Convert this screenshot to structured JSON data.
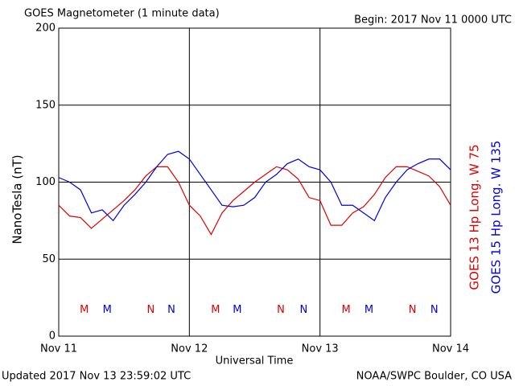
{
  "chart_data": {
    "type": "line",
    "title": "GOES Magnetometer (1 minute data)",
    "subtitle": "Begin:  2017 Nov 11 0000 UTC",
    "y_label": "NanoTesla (nT)",
    "x_label": "Universal Time",
    "footer_left": "Updated 2017 Nov 13 23:59:02 UTC",
    "footer_right": "NOAA/SWPC Boulder, CO USA",
    "grid": true,
    "x": [
      0,
      2,
      4,
      6,
      8,
      10,
      12,
      14,
      16,
      18,
      20,
      22,
      24,
      26,
      28,
      30,
      32,
      34,
      36,
      38,
      40,
      42,
      44,
      46,
      48,
      50,
      52,
      54,
      56,
      58,
      60,
      62,
      64,
      66,
      68,
      70,
      72
    ],
    "series": [
      {
        "name": "GOES 13 Hp  Long. W 75",
        "color": "#e00000",
        "values": [
          85,
          78,
          77,
          70,
          76,
          82,
          88,
          95,
          104,
          110,
          110,
          100,
          85,
          78,
          66,
          80,
          88,
          94,
          100,
          105,
          110,
          108,
          102,
          90,
          88,
          72,
          72,
          80,
          84,
          92,
          103,
          110,
          110,
          107,
          104,
          97,
          85
        ]
      },
      {
        "name": "GOES 15 Hp  Long. W 135",
        "color": "#0000e0",
        "values": [
          103,
          100,
          95,
          80,
          82,
          75,
          85,
          92,
          100,
          110,
          118,
          120,
          115,
          105,
          95,
          85,
          84,
          85,
          90,
          100,
          105,
          112,
          115,
          110,
          108,
          100,
          85,
          85,
          80,
          75,
          90,
          100,
          108,
          112,
          115,
          115,
          108
        ]
      }
    ],
    "annotations": [
      {
        "text": "M",
        "x": 4.7,
        "y": 17,
        "color": "#e00000"
      },
      {
        "text": "M",
        "x": 8.9,
        "y": 17,
        "color": "#0000e0"
      },
      {
        "text": "N",
        "x": 16.9,
        "y": 17,
        "color": "#e00000"
      },
      {
        "text": "N",
        "x": 20.7,
        "y": 17,
        "color": "#0000e0"
      },
      {
        "text": "M",
        "x": 28.8,
        "y": 17,
        "color": "#e00000"
      },
      {
        "text": "M",
        "x": 32.8,
        "y": 17,
        "color": "#0000e0"
      },
      {
        "text": "N",
        "x": 40.8,
        "y": 17,
        "color": "#e00000"
      },
      {
        "text": "N",
        "x": 45,
        "y": 17,
        "color": "#0000e0"
      },
      {
        "text": "M",
        "x": 52.8,
        "y": 17,
        "color": "#e00000"
      },
      {
        "text": "M",
        "x": 57,
        "y": 17,
        "color": "#0000e0"
      },
      {
        "text": "N",
        "x": 65,
        "y": 17,
        "color": "#e00000"
      },
      {
        "text": "N",
        "x": 69,
        "y": 17,
        "color": "#0000e0"
      }
    ],
    "xlim": [
      0,
      72
    ],
    "xticks": [
      {
        "value": 0,
        "label": "Nov 11"
      },
      {
        "value": 24,
        "label": "Nov 12"
      },
      {
        "value": 48,
        "label": "Nov 13"
      },
      {
        "value": 72,
        "label": "Nov 14"
      }
    ],
    "ylim": [
      0,
      200
    ],
    "yticks": [
      0,
      50,
      100,
      150,
      200
    ]
  }
}
